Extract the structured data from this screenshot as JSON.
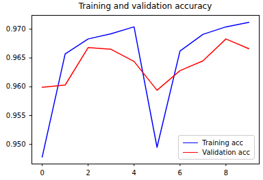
{
  "chart_data": {
    "type": "line",
    "title": "Training and validation accuracy",
    "x": [
      0,
      1,
      2,
      3,
      4,
      5,
      6,
      7,
      8,
      9
    ],
    "series": [
      {
        "name": "Training acc",
        "color": "blue",
        "values": [
          0.9478,
          0.9657,
          0.9683,
          0.9692,
          0.9704,
          0.9495,
          0.9662,
          0.9691,
          0.9704,
          0.9712
        ]
      },
      {
        "name": "Validation acc",
        "color": "red",
        "values": [
          0.9599,
          0.9603,
          0.9668,
          0.9665,
          0.9644,
          0.9594,
          0.9628,
          0.9645,
          0.9683,
          0.9666
        ]
      }
    ],
    "xlim": [
      -0.45,
      9.45
    ],
    "xticks": [
      0,
      2,
      4,
      6,
      8
    ],
    "ylim": [
      0.9466,
      0.9724
    ],
    "yticks": [
      {
        "value": 0.95,
        "label": "0.950"
      },
      {
        "value": 0.955,
        "label": "0.955"
      },
      {
        "value": 0.96,
        "label": "0.960"
      },
      {
        "value": 0.965,
        "label": "0.965"
      },
      {
        "value": 0.97,
        "label": "0.970"
      }
    ],
    "grid": false,
    "legend": "lower right"
  }
}
